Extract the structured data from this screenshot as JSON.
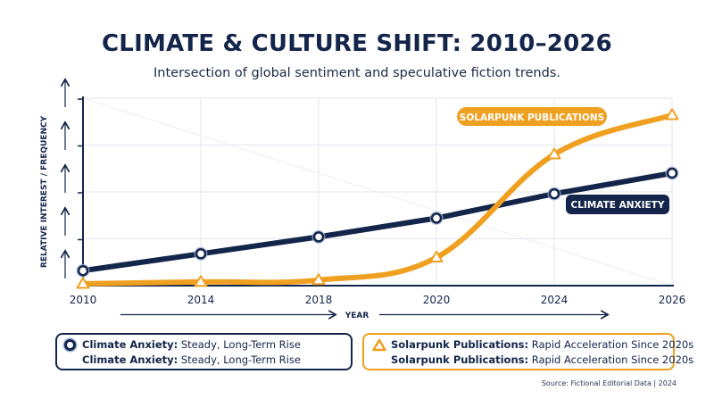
{
  "title": "CLIMATE & CULTURE SHIFT: 2010–2026",
  "subtitle": "Intersection of global sentiment and speculative fiction trends.",
  "source": "Source: Fictional Editorial Data | 2024",
  "colors": {
    "navy": "#13254a",
    "orange": "#f0a020",
    "grid": "#e3e6ee"
  },
  "chart_data": {
    "type": "line",
    "xlabel": "YEAR",
    "ylabel": "RELATIVE INTEREST / FREQUENCY",
    "x_ticks": [
      "2010",
      "2014",
      "2018",
      "2020",
      "2024",
      "2026"
    ],
    "ylim": [
      0,
      100
    ],
    "grid": true,
    "series": [
      {
        "name": "CLIMATE ANXIETY",
        "color": "#13254a",
        "marker": "circle",
        "points": [
          [
            0,
            8
          ],
          [
            1,
            17
          ],
          [
            2,
            26
          ],
          [
            3,
            36
          ],
          [
            4,
            49
          ],
          [
            5,
            60
          ]
        ]
      },
      {
        "name": "SOLARPUNK PUBLICATIONS",
        "color": "#f0a020",
        "marker": "triangle",
        "points": [
          [
            0,
            1
          ],
          [
            1,
            2
          ],
          [
            2,
            3
          ],
          [
            3,
            15
          ],
          [
            4,
            70
          ],
          [
            5,
            91
          ]
        ]
      }
    ]
  },
  "legend": {
    "left": {
      "line1_name": "Climate Anxiety:",
      "line1_desc": " Steady, Long-Term Rise",
      "line2_name": "Climate Anxiety:",
      "line2_desc": " Steady, Long-Term Rise"
    },
    "right": {
      "line1_name": "Solarpunk Publications:",
      "line1_desc": " Rapid Acceleration Since 2020s",
      "line2_name": "Solarpunk Publications:",
      "line2_desc": " Rapid Acceleration Since 2020s"
    }
  }
}
